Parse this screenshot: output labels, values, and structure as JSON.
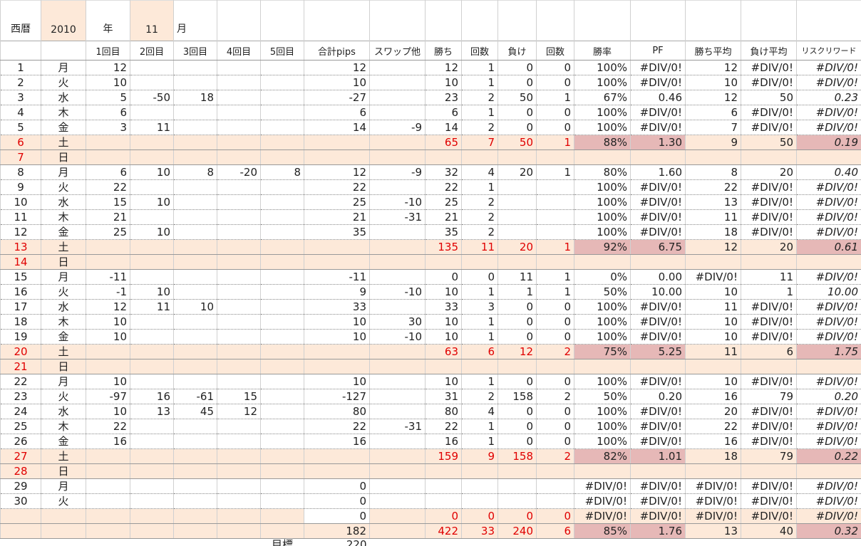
{
  "header": {
    "era_label": "西暦",
    "year": "2010",
    "year_unit": "年",
    "month": "11",
    "month_unit": "月"
  },
  "table": {
    "columns": [
      null,
      null,
      "1回目",
      "2回目",
      "3回目",
      "4回目",
      "5回目",
      "合計pips",
      "スワップ他",
      "勝ち",
      "回数",
      "負け",
      "回数",
      "勝率",
      "PF",
      "勝ち平均",
      "負け平均",
      "リスクリワード"
    ],
    "rows": [
      [
        "1",
        "月",
        "12",
        null,
        null,
        null,
        null,
        "12",
        null,
        "12",
        "1",
        "0",
        "0",
        "100%",
        "#DIV/0!",
        "12",
        "#DIV/0!",
        "#DIV/0!"
      ],
      [
        "2",
        "火",
        "10",
        null,
        null,
        null,
        null,
        "10",
        null,
        "10",
        "1",
        "0",
        "0",
        "100%",
        "#DIV/0!",
        "10",
        "#DIV/0!",
        "#DIV/0!"
      ],
      [
        "3",
        "水",
        "5",
        "-50",
        "18",
        null,
        null,
        "-27",
        null,
        "23",
        "2",
        "50",
        "1",
        "67%",
        "0.46",
        "12",
        "50",
        "0.23"
      ],
      [
        "4",
        "木",
        "6",
        null,
        null,
        null,
        null,
        "6",
        null,
        "6",
        "1",
        "0",
        "0",
        "100%",
        "#DIV/0!",
        "6",
        "#DIV/0!",
        "#DIV/0!"
      ],
      [
        "5",
        "金",
        "3",
        "11",
        null,
        null,
        null,
        "14",
        "-9",
        "14",
        "2",
        "0",
        "0",
        "100%",
        "#DIV/0!",
        "7",
        "#DIV/0!",
        "#DIV/0!"
      ],
      [
        "6",
        "土",
        null,
        null,
        null,
        null,
        null,
        null,
        null,
        "65",
        "7",
        "50",
        "1",
        "88%",
        "1.30",
        "9",
        "50",
        "0.19"
      ],
      [
        "7",
        "日",
        null,
        null,
        null,
        null,
        null,
        null,
        null,
        null,
        null,
        null,
        null,
        null,
        null,
        null,
        null,
        null
      ],
      [
        "8",
        "月",
        "6",
        "10",
        "8",
        "-20",
        "8",
        "12",
        "-9",
        "32",
        "4",
        "20",
        "1",
        "80%",
        "1.60",
        "8",
        "20",
        "0.40"
      ],
      [
        "9",
        "火",
        "22",
        null,
        null,
        null,
        null,
        "22",
        null,
        "22",
        "1",
        null,
        null,
        "100%",
        "#DIV/0!",
        "22",
        "#DIV/0!",
        "#DIV/0!"
      ],
      [
        "10",
        "水",
        "15",
        "10",
        null,
        null,
        null,
        "25",
        "-10",
        "25",
        "2",
        null,
        null,
        "100%",
        "#DIV/0!",
        "13",
        "#DIV/0!",
        "#DIV/0!"
      ],
      [
        "11",
        "木",
        "21",
        null,
        null,
        null,
        null,
        "21",
        "-31",
        "21",
        "2",
        null,
        null,
        "100%",
        "#DIV/0!",
        "11",
        "#DIV/0!",
        "#DIV/0!"
      ],
      [
        "12",
        "金",
        "25",
        "10",
        null,
        null,
        null,
        "35",
        null,
        "35",
        "2",
        null,
        null,
        "100%",
        "#DIV/0!",
        "18",
        "#DIV/0!",
        "#DIV/0!"
      ],
      [
        "13",
        "土",
        null,
        null,
        null,
        null,
        null,
        null,
        null,
        "135",
        "11",
        "20",
        "1",
        "92%",
        "6.75",
        "12",
        "20",
        "0.61"
      ],
      [
        "14",
        "日",
        null,
        null,
        null,
        null,
        null,
        null,
        null,
        null,
        null,
        null,
        null,
        null,
        null,
        null,
        null,
        null
      ],
      [
        "15",
        "月",
        "-11",
        null,
        null,
        null,
        null,
        "-11",
        null,
        "0",
        "0",
        "11",
        "1",
        "0%",
        "0.00",
        "#DIV/0!",
        "11",
        "#DIV/0!"
      ],
      [
        "16",
        "火",
        "-1",
        "10",
        null,
        null,
        null,
        "9",
        "-10",
        "10",
        "1",
        "1",
        "1",
        "50%",
        "10.00",
        "10",
        "1",
        "10.00"
      ],
      [
        "17",
        "水",
        "12",
        "11",
        "10",
        null,
        null,
        "33",
        null,
        "33",
        "3",
        "0",
        "0",
        "100%",
        "#DIV/0!",
        "11",
        "#DIV/0!",
        "#DIV/0!"
      ],
      [
        "18",
        "木",
        "10",
        null,
        null,
        null,
        null,
        "10",
        "30",
        "10",
        "1",
        "0",
        "0",
        "100%",
        "#DIV/0!",
        "10",
        "#DIV/0!",
        "#DIV/0!"
      ],
      [
        "19",
        "金",
        "10",
        null,
        null,
        null,
        null,
        "10",
        "-10",
        "10",
        "1",
        "0",
        "0",
        "100%",
        "#DIV/0!",
        "10",
        "#DIV/0!",
        "#DIV/0!"
      ],
      [
        "20",
        "土",
        null,
        null,
        null,
        null,
        null,
        null,
        null,
        "63",
        "6",
        "12",
        "2",
        "75%",
        "5.25",
        "11",
        "6",
        "1.75"
      ],
      [
        "21",
        "日",
        null,
        null,
        null,
        null,
        null,
        null,
        null,
        null,
        null,
        null,
        null,
        null,
        null,
        null,
        null,
        null
      ],
      [
        "22",
        "月",
        "10",
        null,
        null,
        null,
        null,
        "10",
        null,
        "10",
        "1",
        "0",
        "0",
        "100%",
        "#DIV/0!",
        "10",
        "#DIV/0!",
        "#DIV/0!"
      ],
      [
        "23",
        "火",
        "-97",
        "16",
        "-61",
        "15",
        null,
        "-127",
        null,
        "31",
        "2",
        "158",
        "2",
        "50%",
        "0.20",
        "16",
        "79",
        "0.20"
      ],
      [
        "24",
        "水",
        "10",
        "13",
        "45",
        "12",
        null,
        "80",
        null,
        "80",
        "4",
        "0",
        "0",
        "100%",
        "#DIV/0!",
        "20",
        "#DIV/0!",
        "#DIV/0!"
      ],
      [
        "25",
        "木",
        "22",
        null,
        null,
        null,
        null,
        "22",
        "-31",
        "22",
        "1",
        "0",
        "0",
        "100%",
        "#DIV/0!",
        "22",
        "#DIV/0!",
        "#DIV/0!"
      ],
      [
        "26",
        "金",
        "16",
        null,
        null,
        null,
        null,
        "16",
        null,
        "16",
        "1",
        "0",
        "0",
        "100%",
        "#DIV/0!",
        "16",
        "#DIV/0!",
        "#DIV/0!"
      ],
      [
        "27",
        "土",
        null,
        null,
        null,
        null,
        null,
        null,
        null,
        "159",
        "9",
        "158",
        "2",
        "82%",
        "1.01",
        "18",
        "79",
        "0.22"
      ],
      [
        "28",
        "日",
        null,
        null,
        null,
        null,
        null,
        null,
        null,
        null,
        null,
        null,
        null,
        null,
        null,
        null,
        null,
        null
      ],
      [
        "29",
        "月",
        null,
        null,
        null,
        null,
        null,
        "0",
        null,
        null,
        null,
        null,
        null,
        "#DIV/0!",
        "#DIV/0!",
        "#DIV/0!",
        "#DIV/0!",
        "#DIV/0!"
      ],
      [
        "30",
        "火",
        null,
        null,
        null,
        null,
        null,
        "0",
        null,
        null,
        null,
        null,
        null,
        "#DIV/0!",
        "#DIV/0!",
        "#DIV/0!",
        "#DIV/0!",
        "#DIV/0!"
      ],
      [
        null,
        null,
        null,
        null,
        null,
        null,
        null,
        "0",
        null,
        "0",
        "0",
        "0",
        "0",
        "#DIV/0!",
        "#DIV/0!",
        "#DIV/0!",
        "#DIV/0!",
        "#DIV/0!"
      ],
      [
        null,
        null,
        null,
        null,
        null,
        null,
        null,
        "182",
        null,
        "422",
        "33",
        "240",
        "6",
        "85%",
        "1.76",
        "13",
        "40",
        "0.32"
      ]
    ]
  },
  "footer": {
    "label": "目標",
    "value": "220"
  }
}
